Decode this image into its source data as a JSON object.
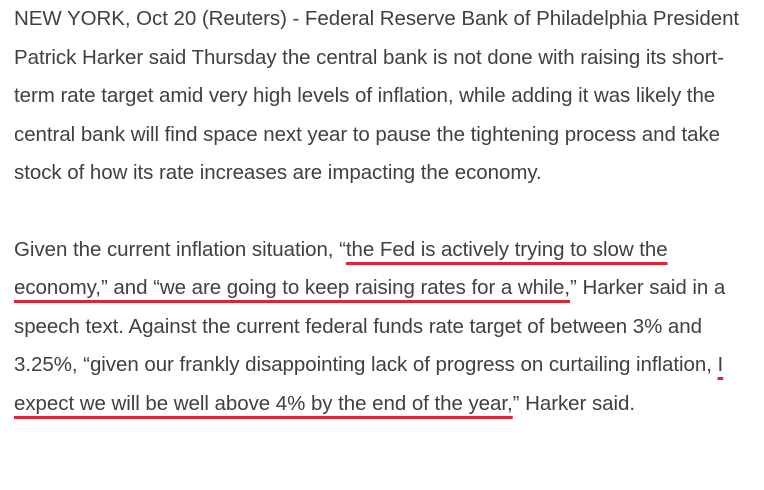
{
  "article": {
    "paragraph_1": "NEW YORK, Oct 20 (Reuters) - Federal Reserve Bank of Philadelphia President Patrick Harker said Thursday the central bank is not done with raising its short-term rate target amid very high levels of inflation, while adding it was likely the central bank will find space next year to pause the tightening process and take stock of how its rate increases are impacting the economy.",
    "paragraph_2": {
      "text_1": "Given the current inflation situation, “",
      "highlight_1": "the Fed is actively trying to slow the economy,” and “we are going to keep raising rates for a while,",
      "text_2": "” Harker said in a speech text. Against the current federal funds rate target of between 3% and 3.25%, “given our frankly disappointing lack of progress on curtailing inflation, ",
      "highlight_2": "I expect we will be well above 4% by the end of the year,",
      "text_3": "” Harker said."
    }
  },
  "colors": {
    "text": "#404040",
    "underline": "#dc2434",
    "background": "#ffffff"
  }
}
